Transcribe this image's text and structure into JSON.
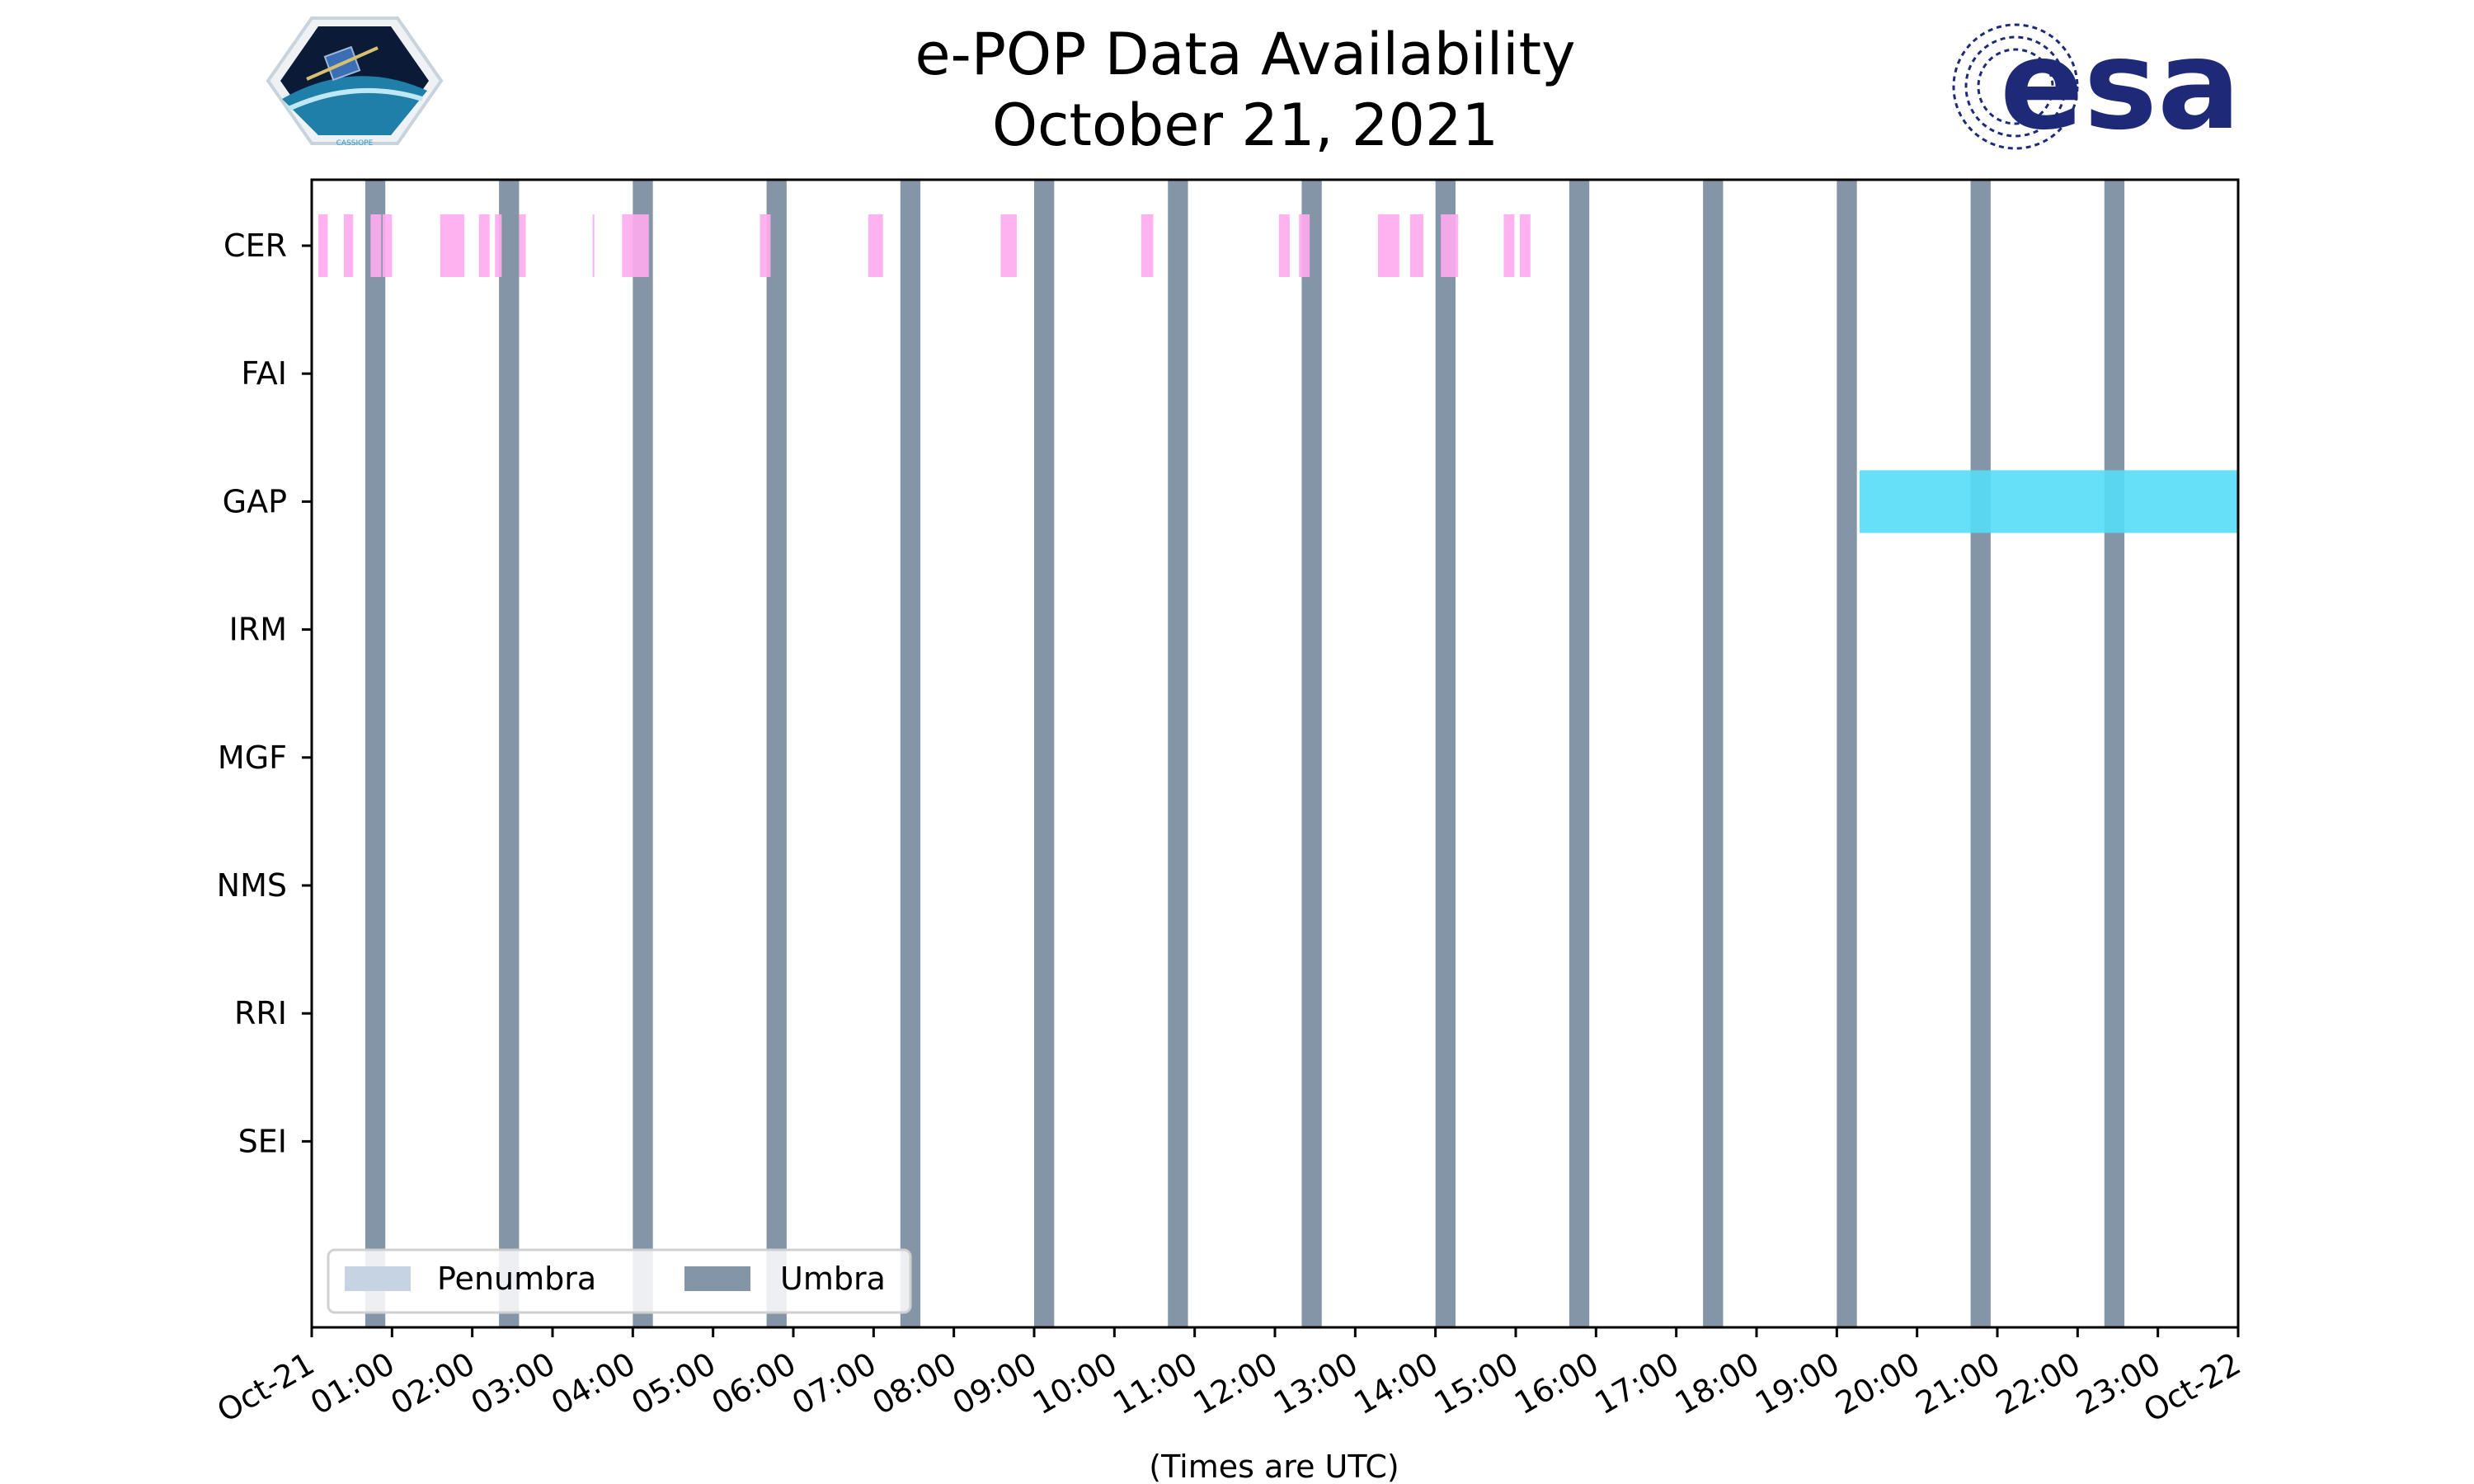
{
  "header": {
    "title_line1": "e-POP Data Availability",
    "title_line2": "October 21, 2021",
    "left_logo": {
      "name": "cassiope-logo",
      "text": "CASSIOPE"
    },
    "right_logo": {
      "name": "esa-logo",
      "text": "esa",
      "color": "#1e2a78"
    }
  },
  "chart_data": {
    "type": "timeline",
    "xlabel": "(Times are UTC)",
    "x_range": [
      "2021-10-21 00:00",
      "2021-10-22 00:00"
    ],
    "x_tick_labels": [
      "Oct-21",
      "01:00",
      "02:00",
      "03:00",
      "04:00",
      "05:00",
      "06:00",
      "07:00",
      "08:00",
      "09:00",
      "10:00",
      "11:00",
      "12:00",
      "13:00",
      "14:00",
      "15:00",
      "16:00",
      "17:00",
      "18:00",
      "19:00",
      "20:00",
      "21:00",
      "22:00",
      "23:00",
      "Oct-22"
    ],
    "y_tick_labels": [
      "CER",
      "FAI",
      "GAP",
      "IRM",
      "MGF",
      "NMS",
      "RRI",
      "SEI"
    ],
    "legend": {
      "placement": "lower-left",
      "entries": [
        {
          "label": "Penumbra",
          "color": "#c6d3e3"
        },
        {
          "label": "Umbra",
          "color": "#8595a8"
        }
      ]
    },
    "umbra_intervals": [
      [
        "00:40",
        "00:55"
      ],
      [
        "02:20",
        "02:35"
      ],
      [
        "04:00",
        "04:15"
      ],
      [
        "05:40",
        "05:55"
      ],
      [
        "07:20",
        "07:35"
      ],
      [
        "09:00",
        "09:15"
      ],
      [
        "10:40",
        "10:55"
      ],
      [
        "12:20",
        "12:35"
      ],
      [
        "14:00",
        "14:15"
      ],
      [
        "15:40",
        "15:55"
      ],
      [
        "17:20",
        "17:35"
      ],
      [
        "19:00",
        "19:15"
      ],
      [
        "20:40",
        "20:55"
      ],
      [
        "22:20",
        "22:35"
      ]
    ],
    "series": [
      {
        "name": "CER",
        "color": "#ffaaee",
        "intervals": [
          [
            "00:05",
            "00:12"
          ],
          [
            "00:24",
            "00:31"
          ],
          [
            "00:44",
            "00:52"
          ],
          [
            "00:53",
            "01:00"
          ],
          [
            "01:36",
            "01:54"
          ],
          [
            "02:05",
            "02:13"
          ],
          [
            "02:17",
            "02:22"
          ],
          [
            "02:35",
            "02:40"
          ],
          [
            "03:30",
            "03:31"
          ],
          [
            "03:52",
            "04:12"
          ],
          [
            "05:35",
            "05:43"
          ],
          [
            "06:56",
            "07:07"
          ],
          [
            "08:35",
            "08:47"
          ],
          [
            "10:20",
            "10:29"
          ],
          [
            "12:03",
            "12:11"
          ],
          [
            "12:18",
            "12:26"
          ],
          [
            "13:17",
            "13:33"
          ],
          [
            "13:41",
            "13:51"
          ],
          [
            "14:04",
            "14:17"
          ],
          [
            "14:51",
            "14:59"
          ],
          [
            "15:03",
            "15:11"
          ]
        ]
      },
      {
        "name": "FAI",
        "color": "#ffaaee",
        "intervals": []
      },
      {
        "name": "GAP",
        "color": "#55ddf7",
        "intervals": [
          [
            "19:17",
            "24:00"
          ]
        ]
      },
      {
        "name": "IRM",
        "color": "#ffaaee",
        "intervals": []
      },
      {
        "name": "MGF",
        "color": "#ffaaee",
        "intervals": []
      },
      {
        "name": "NMS",
        "color": "#ffaaee",
        "intervals": []
      },
      {
        "name": "RRI",
        "color": "#ffaaee",
        "intervals": []
      },
      {
        "name": "SEI",
        "color": "#ffaaee",
        "intervals": []
      }
    ]
  }
}
